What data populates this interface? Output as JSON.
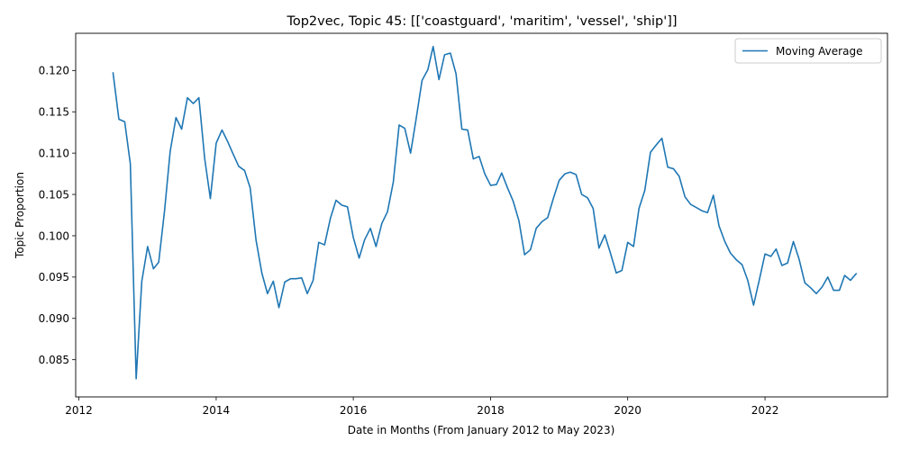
{
  "chart_data": {
    "type": "line",
    "title": "Top2vec, Topic 45: [['coastguard', 'maritim', 'vessel', 'ship']]",
    "xlabel": "Date in Months (From January 2012 to May 2023)",
    "ylabel": "Topic Proportion",
    "xlim": [
      "2011-12-15",
      "2023-10-15"
    ],
    "ylim": [
      0.0805,
      0.1245
    ],
    "x_ticks": [
      {
        "value": "2012-01-01",
        "label": "2012"
      },
      {
        "value": "2014-01-01",
        "label": "2014"
      },
      {
        "value": "2016-01-01",
        "label": "2016"
      },
      {
        "value": "2018-01-01",
        "label": "2018"
      },
      {
        "value": "2020-01-01",
        "label": "2020"
      },
      {
        "value": "2022-01-01",
        "label": "2022"
      }
    ],
    "y_ticks": [
      {
        "value": 0.085,
        "label": "0.085"
      },
      {
        "value": 0.09,
        "label": "0.090"
      },
      {
        "value": 0.095,
        "label": "0.095"
      },
      {
        "value": 0.1,
        "label": "0.100"
      },
      {
        "value": 0.105,
        "label": "0.105"
      },
      {
        "value": 0.11,
        "label": "0.110"
      },
      {
        "value": 0.115,
        "label": "0.115"
      },
      {
        "value": 0.12,
        "label": "0.120"
      }
    ],
    "grid": false,
    "legend_position": "top-right",
    "series": [
      {
        "name": "Moving Average",
        "color": "#1f77b4",
        "points": [
          [
            "2012-07-01",
            0.1197
          ],
          [
            "2012-08-01",
            0.1141
          ],
          [
            "2012-09-01",
            0.1138
          ],
          [
            "2012-10-01",
            0.1087
          ],
          [
            "2012-11-01",
            0.0827
          ],
          [
            "2012-12-01",
            0.0945
          ],
          [
            "2013-01-01",
            0.0987
          ],
          [
            "2013-02-01",
            0.096
          ],
          [
            "2013-03-01",
            0.0968
          ],
          [
            "2013-04-01",
            0.103
          ],
          [
            "2013-05-01",
            0.1102
          ],
          [
            "2013-06-01",
            0.1143
          ],
          [
            "2013-07-01",
            0.1129
          ],
          [
            "2013-08-01",
            0.1167
          ],
          [
            "2013-09-01",
            0.116
          ],
          [
            "2013-10-01",
            0.1167
          ],
          [
            "2013-11-01",
            0.1093
          ],
          [
            "2013-12-01",
            0.1045
          ],
          [
            "2014-01-01",
            0.1112
          ],
          [
            "2014-02-01",
            0.1128
          ],
          [
            "2014-03-01",
            0.1115
          ],
          [
            "2014-04-01",
            0.1099
          ],
          [
            "2014-05-01",
            0.1084
          ],
          [
            "2014-06-01",
            0.1079
          ],
          [
            "2014-07-01",
            0.1058
          ],
          [
            "2014-08-01",
            0.0995
          ],
          [
            "2014-09-01",
            0.0955
          ],
          [
            "2014-10-01",
            0.093
          ],
          [
            "2014-11-01",
            0.0945
          ],
          [
            "2014-12-01",
            0.0913
          ],
          [
            "2015-01-01",
            0.0944
          ],
          [
            "2015-02-01",
            0.0948
          ],
          [
            "2015-03-01",
            0.0948
          ],
          [
            "2015-04-01",
            0.0949
          ],
          [
            "2015-05-01",
            0.093
          ],
          [
            "2015-06-01",
            0.0946
          ],
          [
            "2015-07-01",
            0.0992
          ],
          [
            "2015-08-01",
            0.0989
          ],
          [
            "2015-09-01",
            0.1021
          ],
          [
            "2015-10-01",
            0.1043
          ],
          [
            "2015-11-01",
            0.1037
          ],
          [
            "2015-12-01",
            0.1035
          ],
          [
            "2016-01-01",
            0.0998
          ],
          [
            "2016-02-01",
            0.0973
          ],
          [
            "2016-03-01",
            0.0995
          ],
          [
            "2016-04-01",
            0.1009
          ],
          [
            "2016-05-01",
            0.0987
          ],
          [
            "2016-06-01",
            0.1015
          ],
          [
            "2016-07-01",
            0.1029
          ],
          [
            "2016-08-01",
            0.1065
          ],
          [
            "2016-09-01",
            0.1134
          ],
          [
            "2016-10-01",
            0.113
          ],
          [
            "2016-11-01",
            0.11
          ],
          [
            "2016-12-01",
            0.1142
          ],
          [
            "2017-01-01",
            0.1188
          ],
          [
            "2017-02-01",
            0.1201
          ],
          [
            "2017-03-01",
            0.1229
          ],
          [
            "2017-04-01",
            0.1189
          ],
          [
            "2017-05-01",
            0.1219
          ],
          [
            "2017-06-01",
            0.1221
          ],
          [
            "2017-07-01",
            0.1196
          ],
          [
            "2017-08-01",
            0.1129
          ],
          [
            "2017-09-01",
            0.1128
          ],
          [
            "2017-10-01",
            0.1093
          ],
          [
            "2017-11-01",
            0.1096
          ],
          [
            "2017-12-01",
            0.1075
          ],
          [
            "2018-01-01",
            0.1061
          ],
          [
            "2018-02-01",
            0.1062
          ],
          [
            "2018-03-01",
            0.1076
          ],
          [
            "2018-04-01",
            0.1058
          ],
          [
            "2018-05-01",
            0.1042
          ],
          [
            "2018-06-01",
            0.1018
          ],
          [
            "2018-07-01",
            0.0977
          ],
          [
            "2018-08-01",
            0.0983
          ],
          [
            "2018-09-01",
            0.1009
          ],
          [
            "2018-10-01",
            0.1017
          ],
          [
            "2018-11-01",
            0.1022
          ],
          [
            "2018-12-01",
            0.1045
          ],
          [
            "2019-01-01",
            0.1067
          ],
          [
            "2019-02-01",
            0.1075
          ],
          [
            "2019-03-01",
            0.1077
          ],
          [
            "2019-04-01",
            0.1074
          ],
          [
            "2019-05-01",
            0.105
          ],
          [
            "2019-06-01",
            0.1046
          ],
          [
            "2019-07-01",
            0.1033
          ],
          [
            "2019-08-01",
            0.0985
          ],
          [
            "2019-09-01",
            0.1001
          ],
          [
            "2019-10-01",
            0.0979
          ],
          [
            "2019-11-01",
            0.0955
          ],
          [
            "2019-12-01",
            0.0958
          ],
          [
            "2020-01-01",
            0.0992
          ],
          [
            "2020-02-01",
            0.0987
          ],
          [
            "2020-03-01",
            0.1033
          ],
          [
            "2020-04-01",
            0.1055
          ],
          [
            "2020-05-01",
            0.1101
          ],
          [
            "2020-06-01",
            0.111
          ],
          [
            "2020-07-01",
            0.1118
          ],
          [
            "2020-08-01",
            0.1083
          ],
          [
            "2020-09-01",
            0.1081
          ],
          [
            "2020-10-01",
            0.1072
          ],
          [
            "2020-11-01",
            0.1047
          ],
          [
            "2020-12-01",
            0.1038
          ],
          [
            "2021-01-01",
            0.1034
          ],
          [
            "2021-02-01",
            0.103
          ],
          [
            "2021-03-01",
            0.1028
          ],
          [
            "2021-04-01",
            0.1049
          ],
          [
            "2021-05-01",
            0.1012
          ],
          [
            "2021-06-01",
            0.0993
          ],
          [
            "2021-07-01",
            0.0979
          ],
          [
            "2021-08-01",
            0.0971
          ],
          [
            "2021-09-01",
            0.0965
          ],
          [
            "2021-10-01",
            0.0946
          ],
          [
            "2021-11-01",
            0.0916
          ],
          [
            "2021-12-01",
            0.0946
          ],
          [
            "2022-01-01",
            0.0978
          ],
          [
            "2022-02-01",
            0.0975
          ],
          [
            "2022-03-01",
            0.0984
          ],
          [
            "2022-04-01",
            0.0964
          ],
          [
            "2022-05-01",
            0.0967
          ],
          [
            "2022-06-01",
            0.0993
          ],
          [
            "2022-07-01",
            0.0972
          ],
          [
            "2022-08-01",
            0.0943
          ],
          [
            "2022-09-01",
            0.0937
          ],
          [
            "2022-10-01",
            0.093
          ],
          [
            "2022-11-01",
            0.0938
          ],
          [
            "2022-12-01",
            0.095
          ],
          [
            "2023-01-01",
            0.0934
          ],
          [
            "2023-02-01",
            0.0934
          ],
          [
            "2023-03-01",
            0.0952
          ],
          [
            "2023-04-01",
            0.0946
          ],
          [
            "2023-05-01",
            0.0954
          ]
        ]
      }
    ]
  }
}
